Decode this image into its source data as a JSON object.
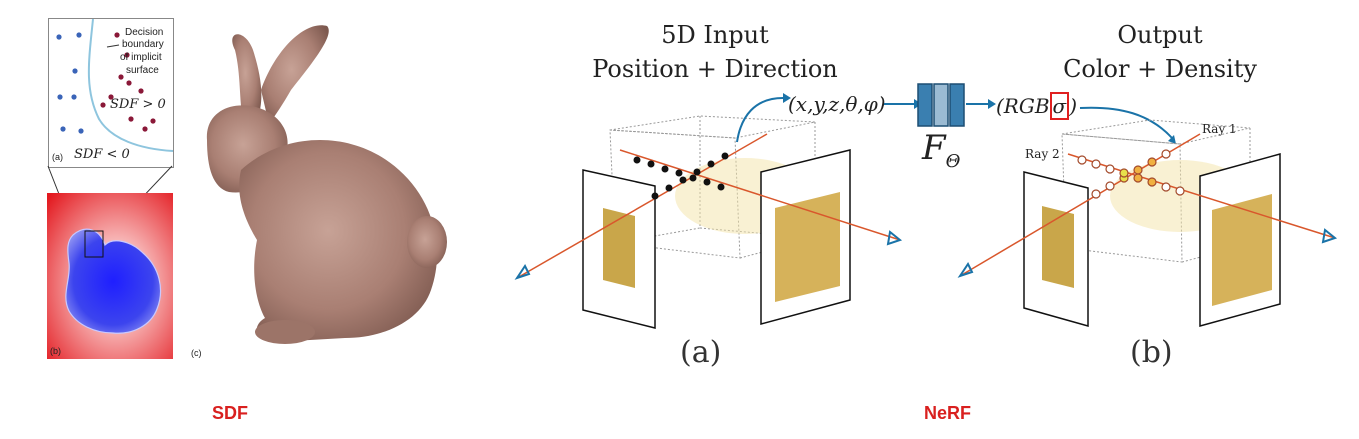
{
  "sdf": {
    "panel_a": {
      "legend_text": [
        "Decision",
        "boundary",
        "of implicit",
        "surface"
      ],
      "label": "(a)",
      "region_outside": "SDF > 0",
      "region_inside": "SDF < 0"
    },
    "panel_b_label": "(b)",
    "panel_c_label": "(c)",
    "footer_label": "SDF",
    "colors": {
      "outside": "#e8242a",
      "inside": "#2530e6",
      "surface": "#a97f73"
    }
  },
  "nerf": {
    "input_title_line1": "5D Input",
    "input_title_line2": "Position + Direction",
    "output_title_line1": "Output",
    "output_title_line2": "Color + Density",
    "input_vector": "(x,y,z,θ,φ)",
    "network_label_main": "F",
    "network_label_sub": "Θ",
    "output_vector_left": "(RGB",
    "output_vector_sigma": "σ",
    "output_vector_right": ")",
    "ray1_label": "Ray 1",
    "ray2_label": "Ray 2",
    "caption_a": "(a)",
    "caption_b": "(b)",
    "footer_label": "NeRF",
    "colors": {
      "network": "#3a7fb0",
      "arrow": "#1a73a8",
      "ray": "#d9572c",
      "highlight": "#e02020"
    }
  }
}
